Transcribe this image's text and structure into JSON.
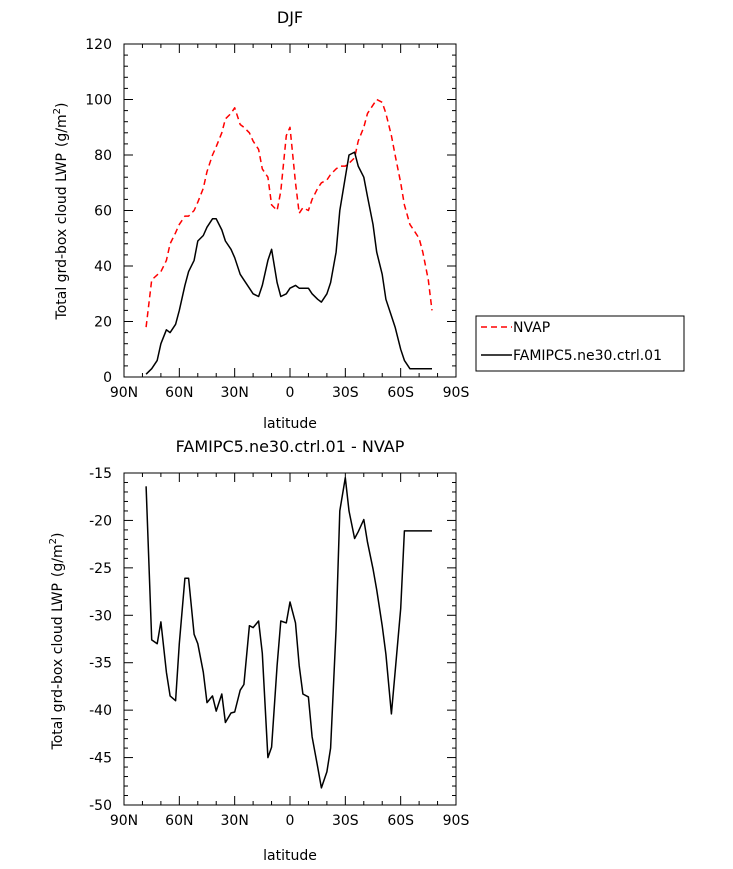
{
  "chart_data": [
    {
      "type": "line",
      "title": "DJF",
      "xlabel": "latitude",
      "ylabel": "Total grd-box cloud LWP",
      "ylabel_unit_prefix": "(g/m",
      "ylabel_unit_sup": "2",
      "ylabel_unit_suffix": ")",
      "xlim": [
        90,
        -90
      ],
      "ylim": [
        0,
        120
      ],
      "xticks": [
        90,
        60,
        30,
        0,
        -30,
        -60,
        -90
      ],
      "xtick_labels": [
        "90N",
        "60N",
        "30N",
        "0",
        "30S",
        "60S",
        "90S"
      ],
      "yticks": [
        0,
        20,
        40,
        60,
        80,
        100,
        120
      ],
      "ytick_labels": [
        "0",
        "20",
        "40",
        "60",
        "80",
        "100",
        "120"
      ],
      "legend": "right",
      "series": [
        {
          "name": "NVAP",
          "color": "#ff0000",
          "dash": true,
          "x": [
            78,
            75,
            70,
            67,
            65,
            62,
            60,
            57,
            55,
            52,
            50,
            47,
            45,
            42,
            40,
            37,
            35,
            32,
            30,
            27,
            25,
            22,
            20,
            17,
            15,
            12,
            10,
            7,
            5,
            2,
            0,
            -3,
            -5,
            -7,
            -10,
            -12,
            -15,
            -17,
            -20,
            -22,
            -25,
            -27,
            -30,
            -32,
            -35,
            -37,
            -40,
            -42,
            -45,
            -47,
            -50,
            -52,
            -55,
            -57,
            -60,
            -62,
            -65,
            -67,
            -70,
            -72,
            -75,
            -77
          ],
          "y": [
            18,
            35,
            38,
            42,
            48,
            52,
            55,
            58,
            58,
            60,
            63,
            68,
            74,
            80,
            83,
            88,
            93,
            95,
            97,
            91,
            90,
            88,
            85,
            82,
            75,
            72,
            62,
            60,
            67,
            87,
            90,
            70,
            59,
            61,
            60,
            64,
            68,
            70,
            71,
            73,
            75,
            76,
            76,
            77,
            79,
            85,
            90,
            95,
            98,
            100,
            99,
            95,
            87,
            80,
            70,
            62,
            55,
            53,
            50,
            45,
            35,
            24
          ]
        },
        {
          "name": "FAMIPC5.ne30.ctrl.01",
          "color": "#000000",
          "dash": false,
          "x": [
            78,
            75,
            72,
            70,
            67,
            65,
            62,
            60,
            57,
            55,
            52,
            50,
            47,
            45,
            42,
            40,
            37,
            35,
            32,
            30,
            27,
            25,
            22,
            20,
            17,
            15,
            12,
            10,
            7,
            5,
            2,
            0,
            -3,
            -5,
            -7,
            -10,
            -12,
            -15,
            -17,
            -20,
            -22,
            -25,
            -27,
            -30,
            -32,
            -35,
            -37,
            -40,
            -42,
            -45,
            -47,
            -50,
            -52,
            -55,
            -57,
            -60,
            -62,
            -65,
            -67,
            -70,
            -72,
            -75,
            -77
          ],
          "y": [
            1,
            3,
            6,
            12,
            17,
            16,
            19,
            24,
            33,
            38,
            42,
            49,
            51,
            54,
            57,
            57,
            53,
            49,
            46,
            43,
            37,
            35,
            32,
            30,
            29,
            33,
            42,
            46,
            34,
            29,
            30,
            32,
            33,
            32,
            32,
            32,
            30,
            28,
            27,
            30,
            34,
            45,
            60,
            72,
            80,
            81,
            76,
            72,
            65,
            55,
            45,
            37,
            28,
            22,
            18,
            10,
            6,
            3,
            3,
            3,
            3,
            3,
            3
          ]
        }
      ]
    },
    {
      "type": "line",
      "title": "FAMIPC5.ne30.ctrl.01 - NVAP",
      "xlabel": "latitude",
      "ylabel": "Total grd-box cloud LWP",
      "ylabel_unit_prefix": "(g/m",
      "ylabel_unit_sup": "2",
      "ylabel_unit_suffix": ")",
      "xlim": [
        90,
        -90
      ],
      "ylim": [
        -50,
        -15
      ],
      "xticks": [
        90,
        60,
        30,
        0,
        -30,
        -60,
        -90
      ],
      "xtick_labels": [
        "90N",
        "60N",
        "30N",
        "0",
        "30S",
        "60S",
        "90S"
      ],
      "yticks": [
        -15,
        -20,
        -25,
        -30,
        -35,
        -40,
        -45,
        -50
      ],
      "ytick_labels": [
        "-15",
        "-20",
        "-25",
        "-30",
        "-35",
        "-40",
        "-45",
        "-50"
      ],
      "series": [
        {
          "color": "#000000",
          "dash": false,
          "x": [
            78,
            75,
            72,
            70,
            67,
            65,
            62,
            60,
            57,
            55,
            52,
            50,
            47,
            45,
            42,
            40,
            37,
            35,
            32,
            30,
            27,
            25,
            22,
            20,
            17,
            15,
            12,
            10,
            7,
            5,
            2,
            0,
            -3,
            -5,
            -7,
            -10,
            -12,
            -15,
            -17,
            -20,
            -22,
            -25,
            -27,
            -30,
            -32,
            -35,
            -37,
            -40,
            -42,
            -45,
            -47,
            -50,
            -52,
            -55,
            -57,
            -60,
            -62,
            -65,
            -67,
            -70,
            -72,
            -75,
            -77
          ],
          "y": [
            -16.4,
            -32.6,
            -33,
            -30.7,
            -36,
            -38.5,
            -39,
            -33,
            -26.1,
            -26.1,
            -32,
            -33,
            -36,
            -39.2,
            -38.5,
            -40.1,
            -38.3,
            -41.3,
            -40.3,
            -40.2,
            -37.9,
            -37.3,
            -31.1,
            -31.3,
            -30.6,
            -34,
            -45,
            -43.9,
            -35.3,
            -30.6,
            -30.8,
            -28.6,
            -30.8,
            -35.3,
            -38.3,
            -38.6,
            -42.8,
            -46,
            -48.2,
            -46.5,
            -44,
            -31.4,
            -19,
            -15.5,
            -19,
            -21.9,
            -21.2,
            -19.9,
            -22.3,
            -25.1,
            -27.3,
            -31.1,
            -34.1,
            -40.4,
            -36,
            -29.3,
            -21.1,
            -21.1,
            -21.1,
            -21.1,
            -21.1,
            -21.1,
            -21.1
          ]
        }
      ]
    }
  ]
}
